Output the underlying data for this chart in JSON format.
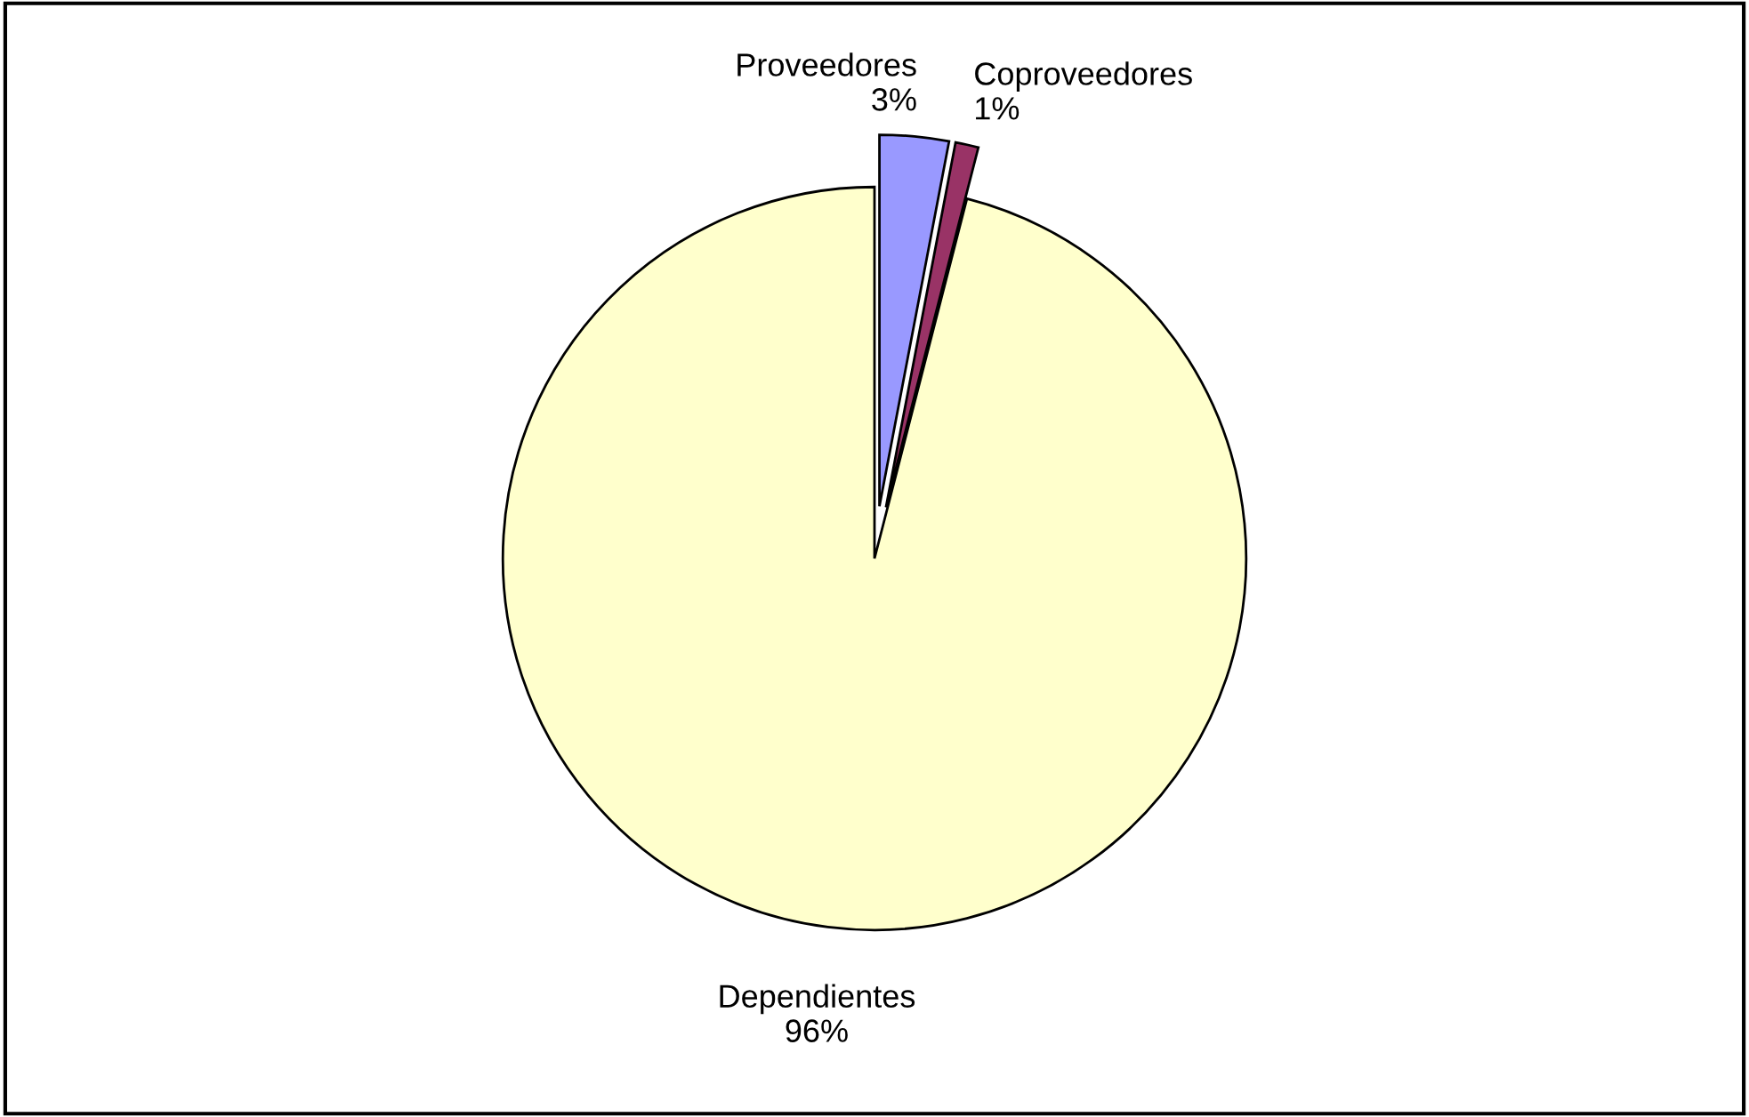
{
  "chart_data": {
    "type": "pie",
    "categories": [
      "Proveedores",
      "Coproveedores",
      "Dependientes"
    ],
    "values": [
      3,
      1,
      96
    ],
    "value_labels": [
      "3%",
      "1%",
      "96%"
    ],
    "colors": [
      "#9999ff",
      "#993366",
      "#ffffcc"
    ],
    "legend": false
  }
}
